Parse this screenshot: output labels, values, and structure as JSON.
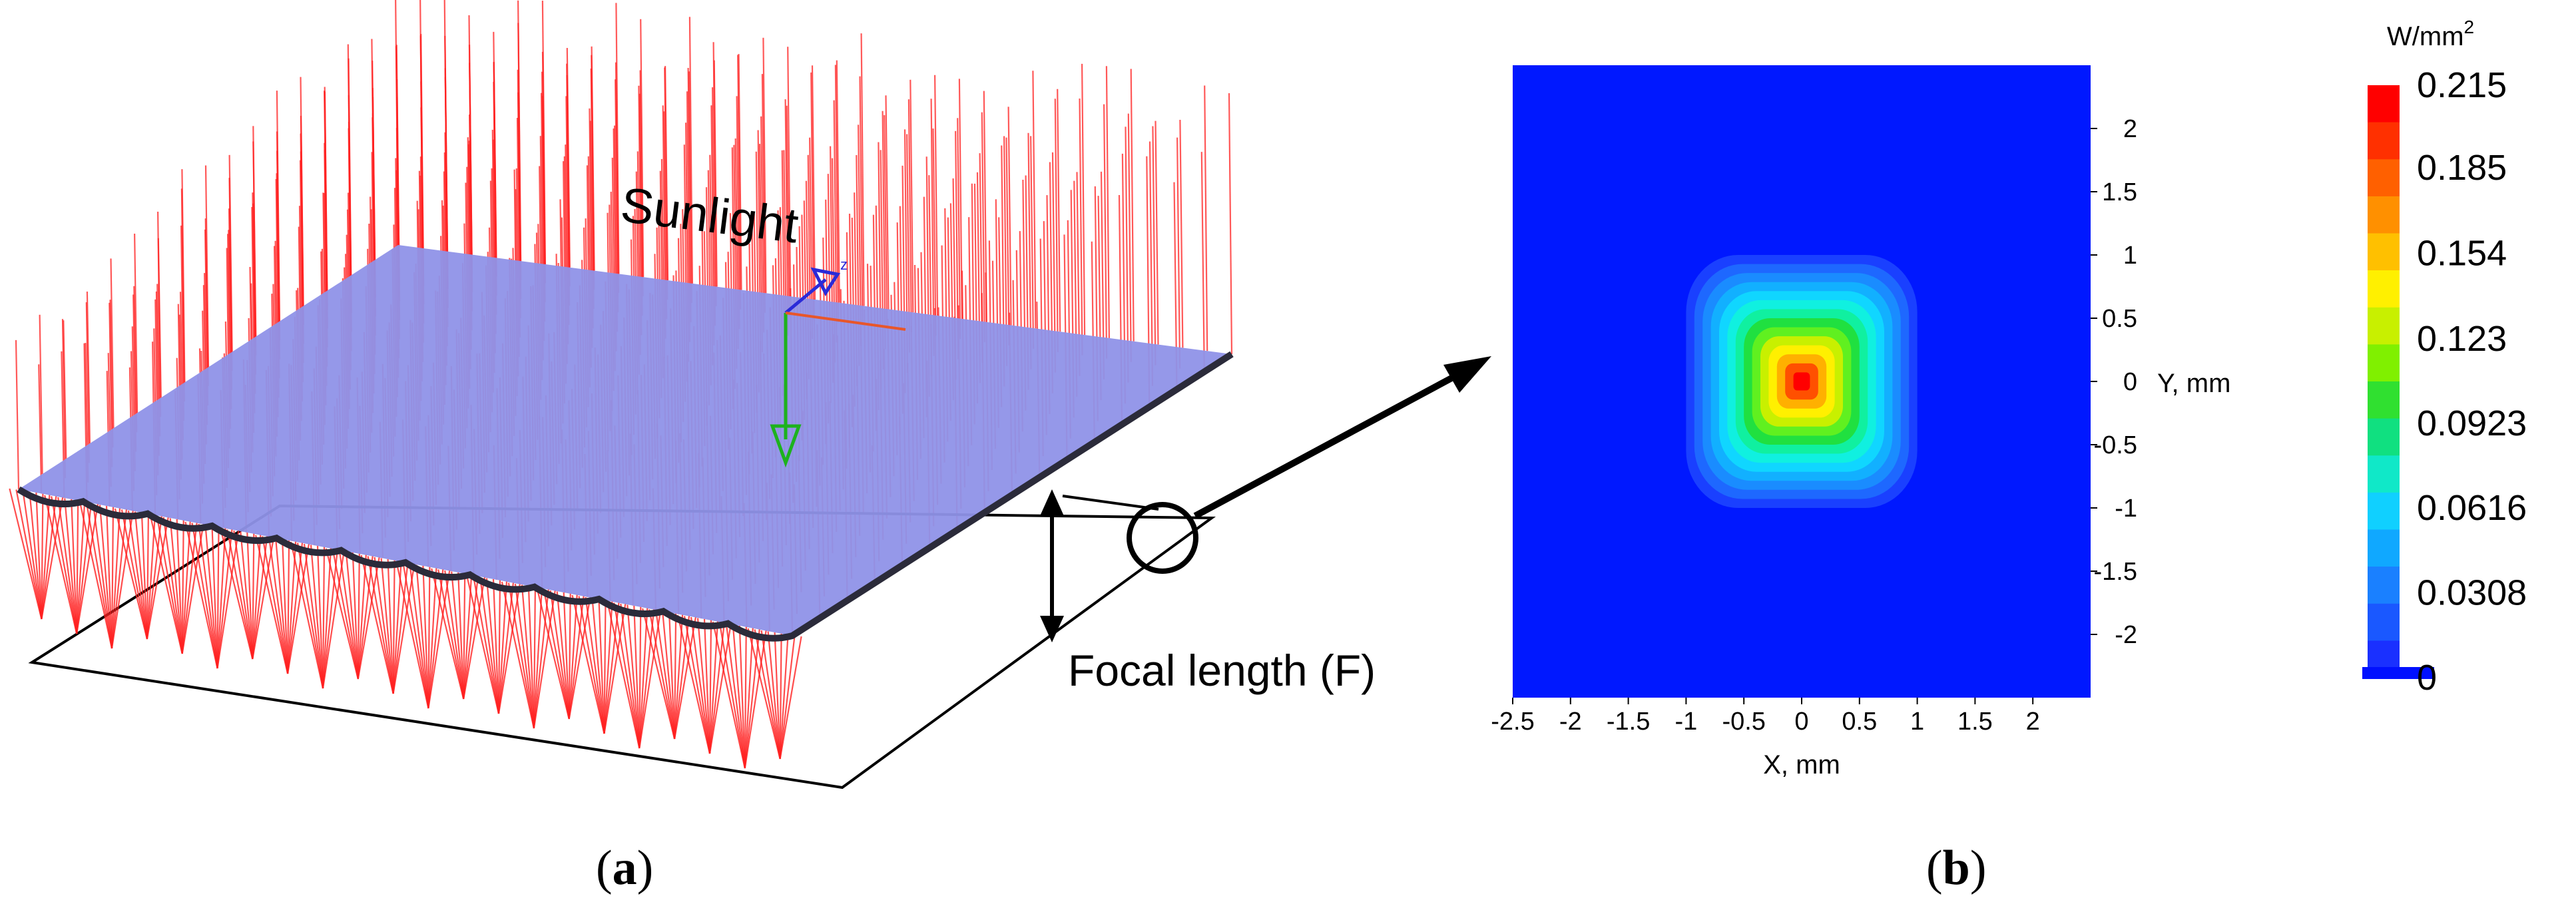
{
  "panel_a": {
    "label_prefix": "(",
    "label_letter": "a",
    "label_suffix": ")",
    "sunlight_text": "Sunlight",
    "focal_text": "Focal length (F)",
    "axis_label_z": "z",
    "ray_color": "#ff2020",
    "lens_color": "#8f92e8",
    "lens_edge_color": "#2b2b3a"
  },
  "panel_b": {
    "label_prefix": "(",
    "label_letter": "b",
    "label_suffix": ")",
    "map_background_color": "#0018ff"
  },
  "chart_data": {
    "type": "heatmap",
    "xlabel": "X, mm",
    "ylabel": "Y, mm",
    "xlim": [
      -2.5,
      2.5
    ],
    "ylim": [
      -2.5,
      2.5
    ],
    "x_ticks": [
      "-2.5",
      "-2",
      "-1.5",
      "-1",
      "-0.5",
      "0",
      "0.5",
      "1",
      "1.5",
      "2"
    ],
    "y_ticks": [
      "2",
      "1.5",
      "1",
      "0.5",
      "0",
      "-0.5",
      "-1",
      "-1.5",
      "-2"
    ],
    "colorbar_unit": "W/mm",
    "colorbar_unit_sup": "2",
    "colorbar_labels": [
      "0.215",
      "0.185",
      "0.154",
      "0.123",
      "0.0923",
      "0.0616",
      "0.0308",
      "0"
    ],
    "colorbar_range": [
      0,
      0.215
    ],
    "peak_value": 0.215,
    "peak_location": [
      0,
      0
    ],
    "spot_radius_mm": 1.0
  }
}
